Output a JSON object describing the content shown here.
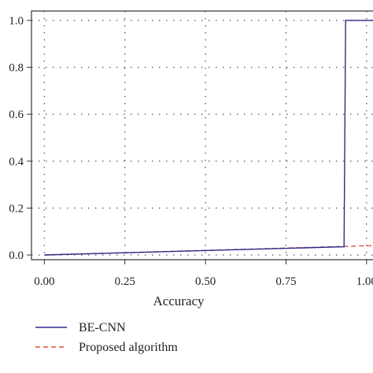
{
  "chart_data": {
    "type": "line",
    "title": "",
    "xlabel": "Accuracy",
    "ylabel": "",
    "xlim": [
      -0.04,
      1.02
    ],
    "ylim": [
      -0.02,
      1.04
    ],
    "xticks": [
      0.0,
      0.25,
      0.5,
      0.75,
      1.0
    ],
    "xtick_labels": [
      "0.00",
      "0.25",
      "0.50",
      "0.75",
      "1.00"
    ],
    "yticks": [
      0.0,
      0.2,
      0.4,
      0.6,
      0.8,
      1.0
    ],
    "ytick_labels": [
      "0.0",
      "0.2",
      "0.4",
      "0.6",
      "0.8",
      "1.0"
    ],
    "grid": true,
    "legend_position": "bottom-left, below axes",
    "series": [
      {
        "name": "BE-CNN",
        "color": "#2b2b8c",
        "style": "solid",
        "x": [
          0.0,
          0.93,
          0.935,
          1.02
        ],
        "y": [
          0.0,
          0.035,
          1.0,
          1.0
        ]
      },
      {
        "name": "Proposed algorithm",
        "color": "#e0553a",
        "style": "dashed",
        "x": [
          0.0,
          1.02
        ],
        "y": [
          0.0,
          0.04
        ]
      }
    ]
  }
}
